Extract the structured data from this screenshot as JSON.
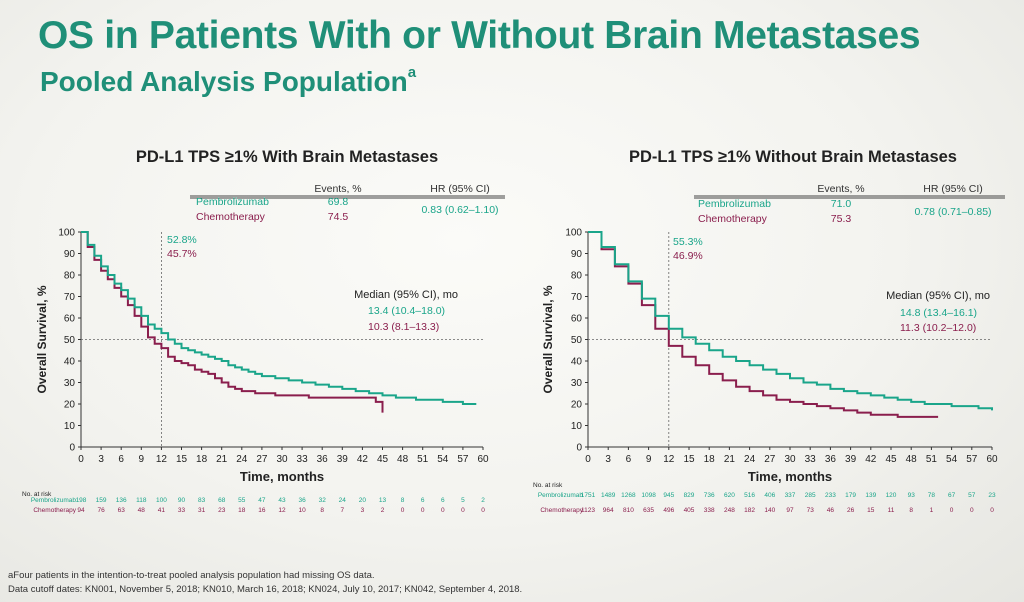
{
  "title": "OS in Patients With or Without Brain Metastases",
  "subtitle": "Pooled Analysis Population",
  "subtitle_sup": "a",
  "colors": {
    "title": "#1f8f78",
    "pembro": "#1aa58a",
    "chemo": "#8a1e4d"
  },
  "footnote_a": "aFour patients in the intention-to-treat pooled analysis population had missing OS data.",
  "footnote_cutoff": "Data cutoff dates: KN001, November 5, 2018; KN010, March 16, 2018; KN024, July 10, 2017; KN042, September 4, 2018.",
  "chart_data": [
    {
      "type": "line",
      "title": "PD-L1 TPS ≥1% With Brain Metastases",
      "xlabel": "Time, months",
      "ylabel": "Overall Survival, %",
      "xlim": [
        0,
        60
      ],
      "ylim": [
        0,
        100
      ],
      "xticks": [
        0,
        3,
        6,
        9,
        12,
        15,
        18,
        21,
        24,
        27,
        30,
        33,
        36,
        39,
        42,
        45,
        48,
        51,
        54,
        57,
        60
      ],
      "yticks": [
        0,
        10,
        20,
        30,
        40,
        50,
        60,
        70,
        80,
        90,
        100
      ],
      "events_header": "Events, %",
      "hr_header": "HR (95% CI)",
      "hr_value": "0.83 (0.62–1.10)",
      "landmark_x": 12,
      "landmark_pembro_label": "52.8%",
      "landmark_chemo_label": "45.7%",
      "median_header": "Median (95% CI), mo",
      "number_at_risk_label": "No. at risk",
      "series": [
        {
          "name": "Pembrolizumab",
          "color_key": "pembro",
          "events": "69.8",
          "median": "13.4 (10.4–18.0)",
          "x": [
            0,
            1,
            2,
            3,
            4,
            5,
            6,
            7,
            8,
            9,
            10,
            11,
            12,
            13,
            14,
            15,
            16,
            17,
            18,
            19,
            20,
            21,
            22,
            23,
            24,
            25,
            26,
            27,
            28,
            29,
            30,
            31,
            32,
            33,
            34,
            35,
            36,
            37,
            38,
            39,
            40,
            41,
            42,
            43,
            44,
            45,
            46,
            47,
            48,
            49,
            50,
            51,
            52,
            53,
            54,
            55,
            56,
            57,
            58,
            59
          ],
          "y": [
            100,
            94,
            89,
            84,
            80,
            76,
            73,
            69,
            65,
            61,
            57,
            55,
            53,
            50,
            48,
            46,
            45,
            44,
            43,
            42,
            41,
            40,
            38,
            37,
            36,
            35,
            34,
            33,
            33,
            32,
            32,
            31,
            31,
            30,
            30,
            29,
            29,
            28,
            28,
            27,
            27,
            26,
            26,
            25,
            25,
            24,
            24,
            23,
            23,
            23,
            22,
            22,
            22,
            22,
            21,
            21,
            21,
            20,
            20,
            20
          ],
          "at_risk": [
            "198",
            "159",
            "136",
            "118",
            "100",
            "90",
            "83",
            "68",
            "55",
            "47",
            "43",
            "36",
            "32",
            "24",
            "20",
            "13",
            "8",
            "6",
            "6",
            "5",
            "2"
          ]
        },
        {
          "name": "Chemotherapy",
          "color_key": "chemo",
          "events": "74.5",
          "median": "10.3 (8.1–13.3)",
          "x": [
            0,
            1,
            2,
            3,
            4,
            5,
            6,
            7,
            8,
            9,
            10,
            11,
            12,
            13,
            14,
            15,
            16,
            17,
            18,
            19,
            20,
            21,
            22,
            23,
            24,
            25,
            26,
            27,
            28,
            29,
            30,
            31,
            32,
            33,
            34,
            35,
            36,
            37,
            38,
            39,
            40,
            41,
            42,
            43,
            44,
            45
          ],
          "y": [
            100,
            93,
            87,
            82,
            78,
            74,
            70,
            66,
            61,
            56,
            51,
            48,
            46,
            42,
            40,
            39,
            38,
            36,
            35,
            34,
            32,
            30,
            28,
            27,
            26,
            26,
            25,
            25,
            25,
            24,
            24,
            24,
            24,
            24,
            23,
            23,
            23,
            23,
            23,
            23,
            23,
            23,
            23,
            23,
            21,
            16
          ],
          "at_risk": [
            "94",
            "76",
            "63",
            "48",
            "41",
            "33",
            "31",
            "23",
            "18",
            "16",
            "12",
            "10",
            "8",
            "7",
            "3",
            "2",
            "0",
            "0",
            "0",
            "0",
            "0"
          ]
        }
      ]
    },
    {
      "type": "line",
      "title": "PD-L1 TPS ≥1% Without Brain Metastases",
      "xlabel": "Time, months",
      "ylabel": "Overall Survival, %",
      "xlim": [
        0,
        60
      ],
      "ylim": [
        0,
        100
      ],
      "xticks": [
        0,
        3,
        6,
        9,
        12,
        15,
        18,
        21,
        24,
        27,
        30,
        33,
        36,
        39,
        42,
        45,
        48,
        51,
        54,
        57,
        60
      ],
      "yticks": [
        0,
        10,
        20,
        30,
        40,
        50,
        60,
        70,
        80,
        90,
        100
      ],
      "events_header": "Events, %",
      "hr_header": "HR (95% CI)",
      "hr_value": "0.78 (0.71–0.85)",
      "landmark_x": 12,
      "landmark_pembro_label": "55.3%",
      "landmark_chemo_label": "46.9%",
      "median_header": "Median (95% CI), mo",
      "number_at_risk_label": "No. at risk",
      "series": [
        {
          "name": "Pembrolizumab",
          "color_key": "pembro",
          "events": "71.0",
          "median": "14.8 (13.4–16.1)",
          "x": [
            0,
            2,
            4,
            6,
            8,
            10,
            12,
            14,
            16,
            18,
            20,
            22,
            24,
            26,
            28,
            30,
            32,
            34,
            36,
            38,
            40,
            42,
            44,
            46,
            48,
            50,
            52,
            54,
            56,
            58,
            60
          ],
          "y": [
            100,
            93,
            85,
            77,
            69,
            61,
            55,
            51,
            48,
            45,
            42,
            40,
            38,
            36,
            34,
            32,
            30,
            29,
            27,
            26,
            25,
            24,
            23,
            22,
            21,
            20,
            20,
            19,
            19,
            18,
            17
          ],
          "at_risk": [
            "1751",
            "1489",
            "1268",
            "1098",
            "945",
            "829",
            "736",
            "620",
            "516",
            "406",
            "337",
            "285",
            "233",
            "179",
            "139",
            "120",
            "93",
            "78",
            "67",
            "57",
            "23"
          ]
        },
        {
          "name": "Chemotherapy",
          "color_key": "chemo",
          "events": "75.3",
          "median": "11.3 (10.2–12.0)",
          "x": [
            0,
            2,
            4,
            6,
            8,
            10,
            12,
            14,
            16,
            18,
            20,
            22,
            24,
            26,
            28,
            30,
            32,
            34,
            36,
            38,
            40,
            42,
            44,
            46,
            48,
            50,
            52
          ],
          "y": [
            100,
            92,
            84,
            76,
            66,
            55,
            47,
            42,
            38,
            34,
            31,
            28,
            26,
            24,
            22,
            21,
            20,
            19,
            18,
            17,
            16,
            15,
            15,
            14,
            14,
            14,
            14
          ],
          "at_risk": [
            "1123",
            "964",
            "810",
            "635",
            "496",
            "405",
            "338",
            "248",
            "182",
            "140",
            "97",
            "73",
            "46",
            "26",
            "15",
            "11",
            "8",
            "1",
            "0",
            "0",
            "0"
          ]
        }
      ]
    }
  ]
}
